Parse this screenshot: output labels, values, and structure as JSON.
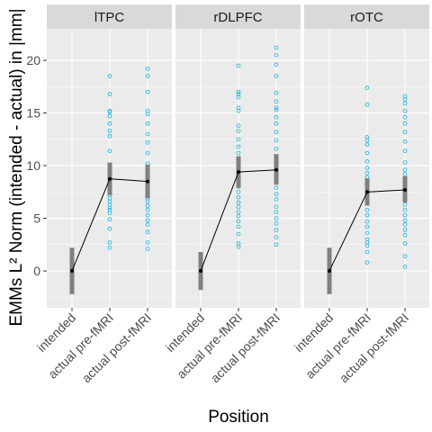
{
  "chart_data": {
    "type": "scatter",
    "title": "",
    "xlabel": "Position",
    "ylabel": "EMMs L² Norm (intended - actual) in |mm|",
    "ylim": [
      -3.5,
      23
    ],
    "y_ticks": [
      0,
      5,
      10,
      15,
      20
    ],
    "categories": [
      "intended",
      "actual pre-fMRI",
      "actual post-fMRI"
    ],
    "panels": [
      {
        "name": "lTPC",
        "means": [
          0.0,
          8.75,
          8.5
        ],
        "intervals": [
          [
            -2.2,
            2.2
          ],
          [
            7.2,
            10.3
          ],
          [
            6.9,
            10.1
          ]
        ],
        "points": [
          [],
          [
            2.2,
            2.7,
            4.0,
            4.9,
            5.5,
            5.8,
            6.0,
            6.3,
            6.6,
            6.9,
            7.2,
            7.6,
            8.0,
            8.3,
            8.7,
            9.1,
            9.5,
            10.0,
            11.4,
            12.8,
            13.3,
            14.0,
            14.7,
            15.1,
            15.2,
            16.8,
            18.5
          ],
          [
            2.1,
            2.7,
            3.7,
            4.4,
            4.8,
            5.3,
            5.8,
            6.2,
            6.6,
            6.9,
            7.3,
            7.6,
            8.0,
            8.3,
            8.7,
            9.0,
            9.4,
            9.8,
            10.2,
            11.2,
            12.2,
            13.0,
            14.0,
            14.9,
            15.2,
            17.0,
            18.5,
            19.2
          ]
        ]
      },
      {
        "name": "rDLPFC",
        "means": [
          0.0,
          9.4,
          9.6
        ],
        "intervals": [
          [
            -1.8,
            1.8
          ],
          [
            7.9,
            10.9
          ],
          [
            8.2,
            11.1
          ]
        ],
        "points": [
          [],
          [
            2.3,
            2.6,
            3.5,
            4.2,
            4.7,
            5.2,
            5.6,
            6.1,
            6.5,
            7.0,
            7.5,
            8.0,
            8.6,
            9.1,
            9.6,
            10.1,
            10.6,
            11.2,
            11.8,
            12.5,
            13.3,
            13.8,
            15.2,
            15.5,
            16.5,
            16.8,
            17.0,
            19.5
          ],
          [
            2.5,
            3.2,
            3.9,
            4.5,
            5.0,
            5.6,
            6.1,
            6.8,
            7.3,
            7.9,
            8.4,
            8.9,
            9.4,
            9.8,
            10.3,
            10.8,
            11.6,
            12.4,
            13.2,
            14.0,
            14.6,
            15.3,
            15.5,
            16.1,
            16.9,
            18.5,
            19.6,
            20.5,
            21.2
          ]
        ]
      },
      {
        "name": "rOTC",
        "means": [
          0.0,
          7.5,
          7.7
        ],
        "intervals": [
          [
            -2.2,
            2.2
          ],
          [
            6.2,
            8.8
          ],
          [
            6.5,
            9.0
          ]
        ],
        "points": [
          [],
          [
            0.8,
            1.8,
            2.4,
            2.7,
            3.0,
            3.6,
            4.2,
            4.7,
            5.3,
            5.8,
            6.4,
            6.9,
            7.4,
            7.9,
            8.4,
            8.9,
            9.3,
            9.8,
            10.4,
            11.2,
            12.0,
            12.4,
            12.7,
            15.8,
            17.4
          ],
          [
            0.4,
            1.4,
            2.6,
            3.4,
            3.9,
            4.4,
            4.8,
            5.3,
            5.8,
            6.3,
            6.8,
            7.3,
            7.8,
            8.3,
            8.8,
            9.2,
            9.6,
            10.3,
            11.4,
            12.3,
            13.2,
            14.0,
            14.6,
            15.2,
            15.9,
            16.3,
            16.6
          ]
        ]
      }
    ],
    "colors": {
      "points": "#29b6e0",
      "interval": "#808080",
      "line": "#000000",
      "panel_bg": "#ebebeb",
      "strip_bg": "#d9d9d9",
      "grid": "#ffffff"
    }
  }
}
